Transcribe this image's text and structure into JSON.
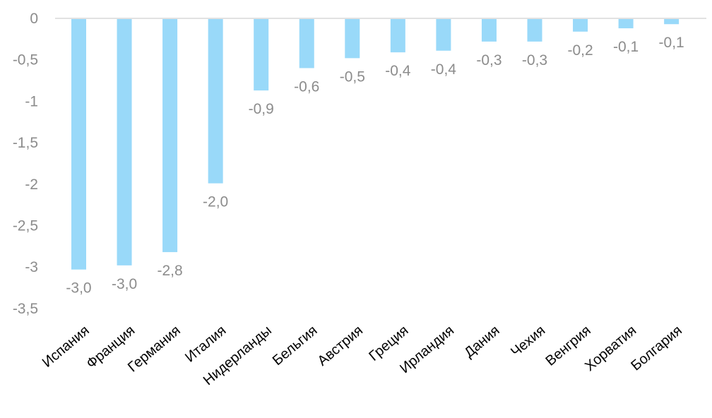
{
  "chart_data": {
    "type": "bar",
    "orientation": "vertical",
    "categories": [
      "Испания",
      "Франция",
      "Германия",
      "Италия",
      "Нидерланды",
      "Бельгия",
      "Австрия",
      "Греция",
      "Ирландия",
      "Дания",
      "Чехия",
      "Венгрия",
      "Хорватия",
      "Болгария"
    ],
    "values": [
      -3.03,
      -2.98,
      -2.82,
      -1.99,
      -0.87,
      -0.6,
      -0.48,
      -0.41,
      -0.39,
      -0.28,
      -0.28,
      -0.16,
      -0.12,
      -0.07
    ],
    "data_labels": [
      "-3,0",
      "-3,0",
      "-2,8",
      "-2,0",
      "-0,9",
      "-0,6",
      "-0,5",
      "-0,4",
      "-0,4",
      "-0,3",
      "-0,3",
      "-0,2",
      "-0,1",
      "-0,1"
    ],
    "y_ticks": [
      0,
      -0.5,
      -1,
      -1.5,
      -2,
      -2.5,
      -3,
      -3.5
    ],
    "y_tick_labels": [
      "0",
      "-0,5",
      "-1",
      "-1,5",
      "-2",
      "-2,5",
      "-3",
      "-3,5"
    ],
    "ylim": [
      -3.5,
      0
    ],
    "title": "",
    "xlabel": "",
    "ylabel": "",
    "grid": false,
    "legend": "none",
    "bar_color": "#99d9f9",
    "axis_color": "#d9d9d9",
    "label_color": "#8c8c8c",
    "category_label_color": "#000000"
  }
}
